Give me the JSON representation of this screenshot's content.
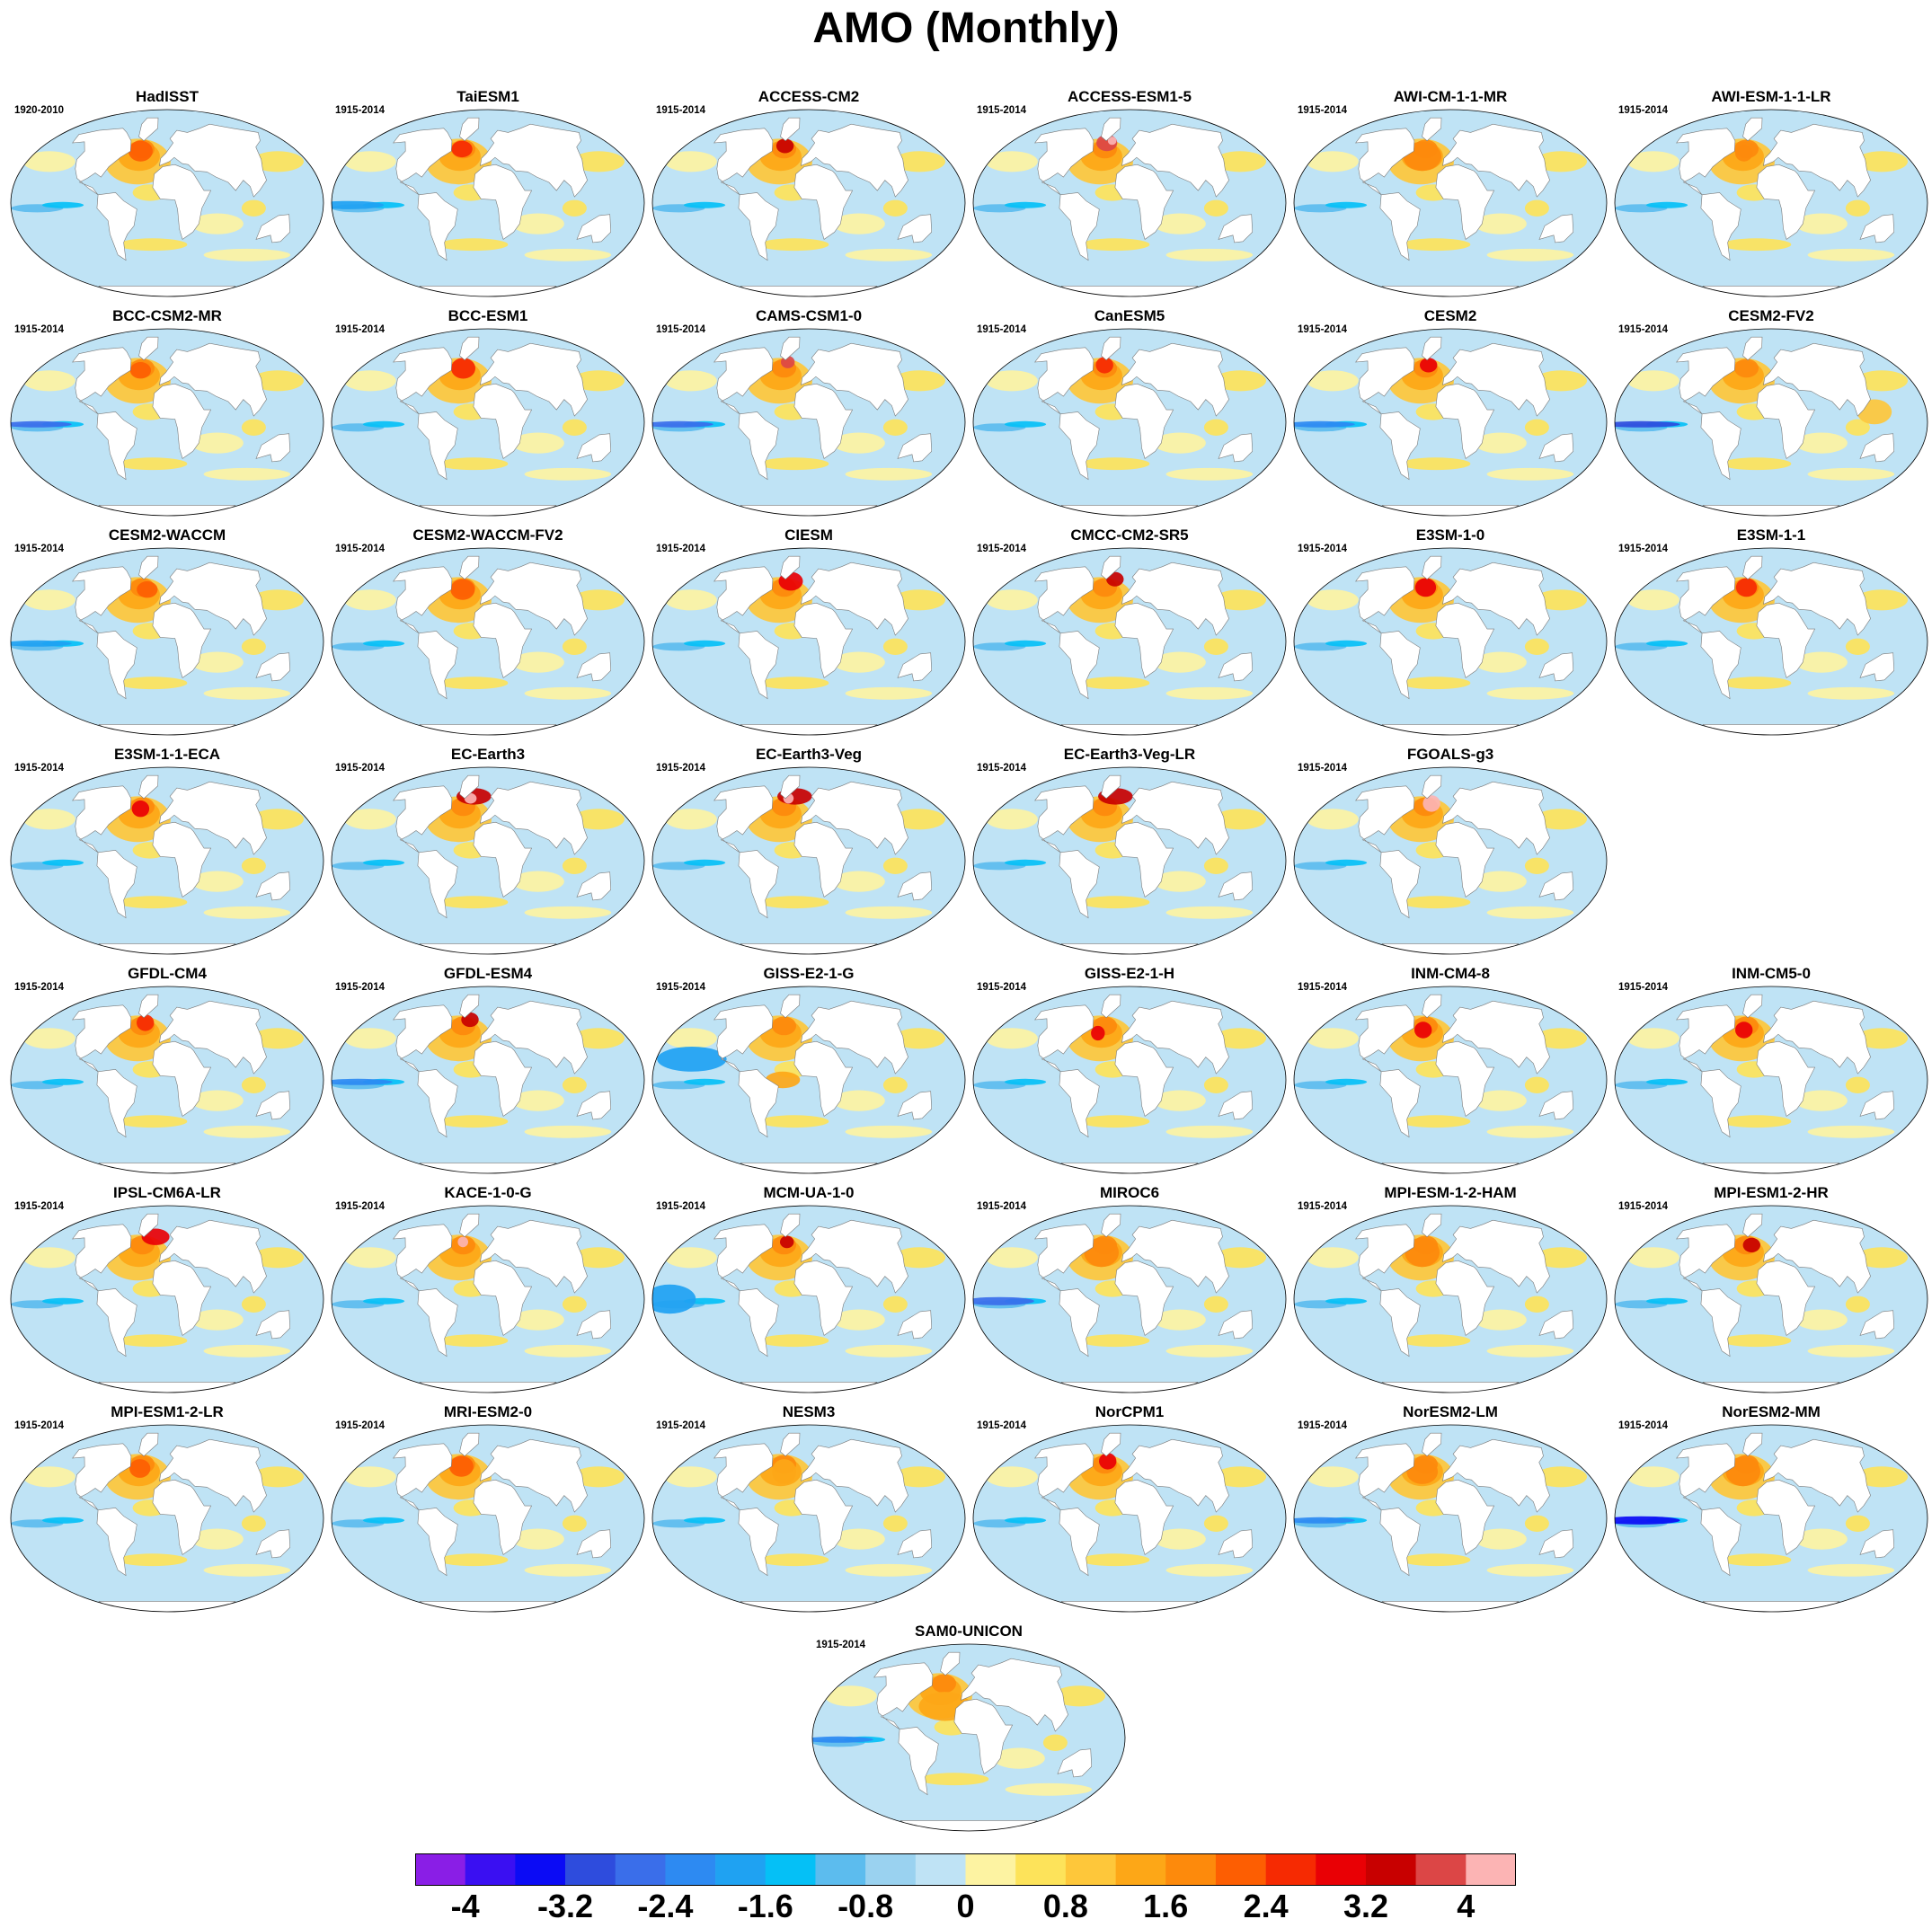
{
  "title": "AMO (Monthly)",
  "colorbar": {
    "colors": [
      "#8a1ee6",
      "#3a0ff2",
      "#0b0bf5",
      "#2e4cdd",
      "#3a6eea",
      "#2d8af2",
      "#1fa2f2",
      "#05c0f6",
      "#5cbcee",
      "#9ad2f0",
      "#bfe3f5",
      "#fdf3a2",
      "#fde35a",
      "#fec73a",
      "#fda717",
      "#fd8a0c",
      "#fd5e02",
      "#f62a02",
      "#e90005",
      "#c80000",
      "#dc4646",
      "#fcb4b4"
    ],
    "ticks": [
      -4,
      -3.2,
      -2.4,
      -1.6,
      -0.8,
      0,
      0.8,
      1.6,
      2.4,
      3.2,
      4
    ],
    "tick_labels": [
      "-4",
      "-3.2",
      "-2.4",
      "-1.6",
      "-0.8",
      "0",
      "0.8",
      "1.6",
      "2.4",
      "3.2",
      "4"
    ],
    "min": -4.4,
    "max": 4.4
  },
  "ocean_color": "#bfe3f5",
  "land_color": "#ffffff",
  "panels": [
    {
      "name": "HadISST",
      "period": "1920-2010"
    },
    {
      "name": "TaiESM1",
      "period": "1915-2014"
    },
    {
      "name": "ACCESS-CM2",
      "period": "1915-2014"
    },
    {
      "name": "ACCESS-ESM1-5",
      "period": "1915-2014"
    },
    {
      "name": "AWI-CM-1-1-MR",
      "period": "1915-2014"
    },
    {
      "name": "AWI-ESM-1-1-LR",
      "period": "1915-2014"
    },
    {
      "name": "BCC-CSM2-MR",
      "period": "1915-2014"
    },
    {
      "name": "BCC-ESM1",
      "period": "1915-2014"
    },
    {
      "name": "CAMS-CSM1-0",
      "period": "1915-2014"
    },
    {
      "name": "CanESM5",
      "period": "1915-2014"
    },
    {
      "name": "CESM2",
      "period": "1915-2014"
    },
    {
      "name": "CESM2-FV2",
      "period": "1915-2014"
    },
    {
      "name": "CESM2-WACCM",
      "period": "1915-2014"
    },
    {
      "name": "CESM2-WACCM-FV2",
      "period": "1915-2014"
    },
    {
      "name": "CIESM",
      "period": "1915-2014"
    },
    {
      "name": "CMCC-CM2-SR5",
      "period": "1915-2014"
    },
    {
      "name": "E3SM-1-0",
      "period": "1915-2014"
    },
    {
      "name": "E3SM-1-1",
      "period": "1915-2014"
    },
    {
      "name": "E3SM-1-1-ECA",
      "period": "1915-2014"
    },
    {
      "name": "EC-Earth3",
      "period": "1915-2014"
    },
    {
      "name": "EC-Earth3-Veg",
      "period": "1915-2014"
    },
    {
      "name": "EC-Earth3-Veg-LR",
      "period": "1915-2014"
    },
    {
      "name": "FGOALS-g3",
      "period": "1915-2014"
    },
    {
      "name": "GFDL-CM4",
      "period": "1915-2014"
    },
    {
      "name": "GFDL-ESM4",
      "period": "1915-2014"
    },
    {
      "name": "GISS-E2-1-G",
      "period": "1915-2014"
    },
    {
      "name": "GISS-E2-1-H",
      "period": "1915-2014"
    },
    {
      "name": "INM-CM4-8",
      "period": "1915-2014"
    },
    {
      "name": "INM-CM5-0",
      "period": "1915-2014"
    },
    {
      "name": "IPSL-CM6A-LR",
      "period": "1915-2014"
    },
    {
      "name": "KACE-1-0-G",
      "period": "1915-2014"
    },
    {
      "name": "MCM-UA-1-0",
      "period": "1915-2014"
    },
    {
      "name": "MIROC6",
      "period": "1915-2014"
    },
    {
      "name": "MPI-ESM-1-2-HAM",
      "period": "1915-2014"
    },
    {
      "name": "MPI-ESM1-2-HR",
      "period": "1915-2014"
    },
    {
      "name": "MPI-ESM1-2-LR",
      "period": "1915-2014"
    },
    {
      "name": "MRI-ESM2-0",
      "period": "1915-2014"
    },
    {
      "name": "NESM3",
      "period": "1915-2014"
    },
    {
      "name": "NorCPM1",
      "period": "1915-2014"
    },
    {
      "name": "NorESM2-LM",
      "period": "1915-2014"
    },
    {
      "name": "NorESM2-MM",
      "period": "1915-2014"
    },
    {
      "name": "SAM0-UNICON",
      "period": "1915-2014"
    }
  ]
}
